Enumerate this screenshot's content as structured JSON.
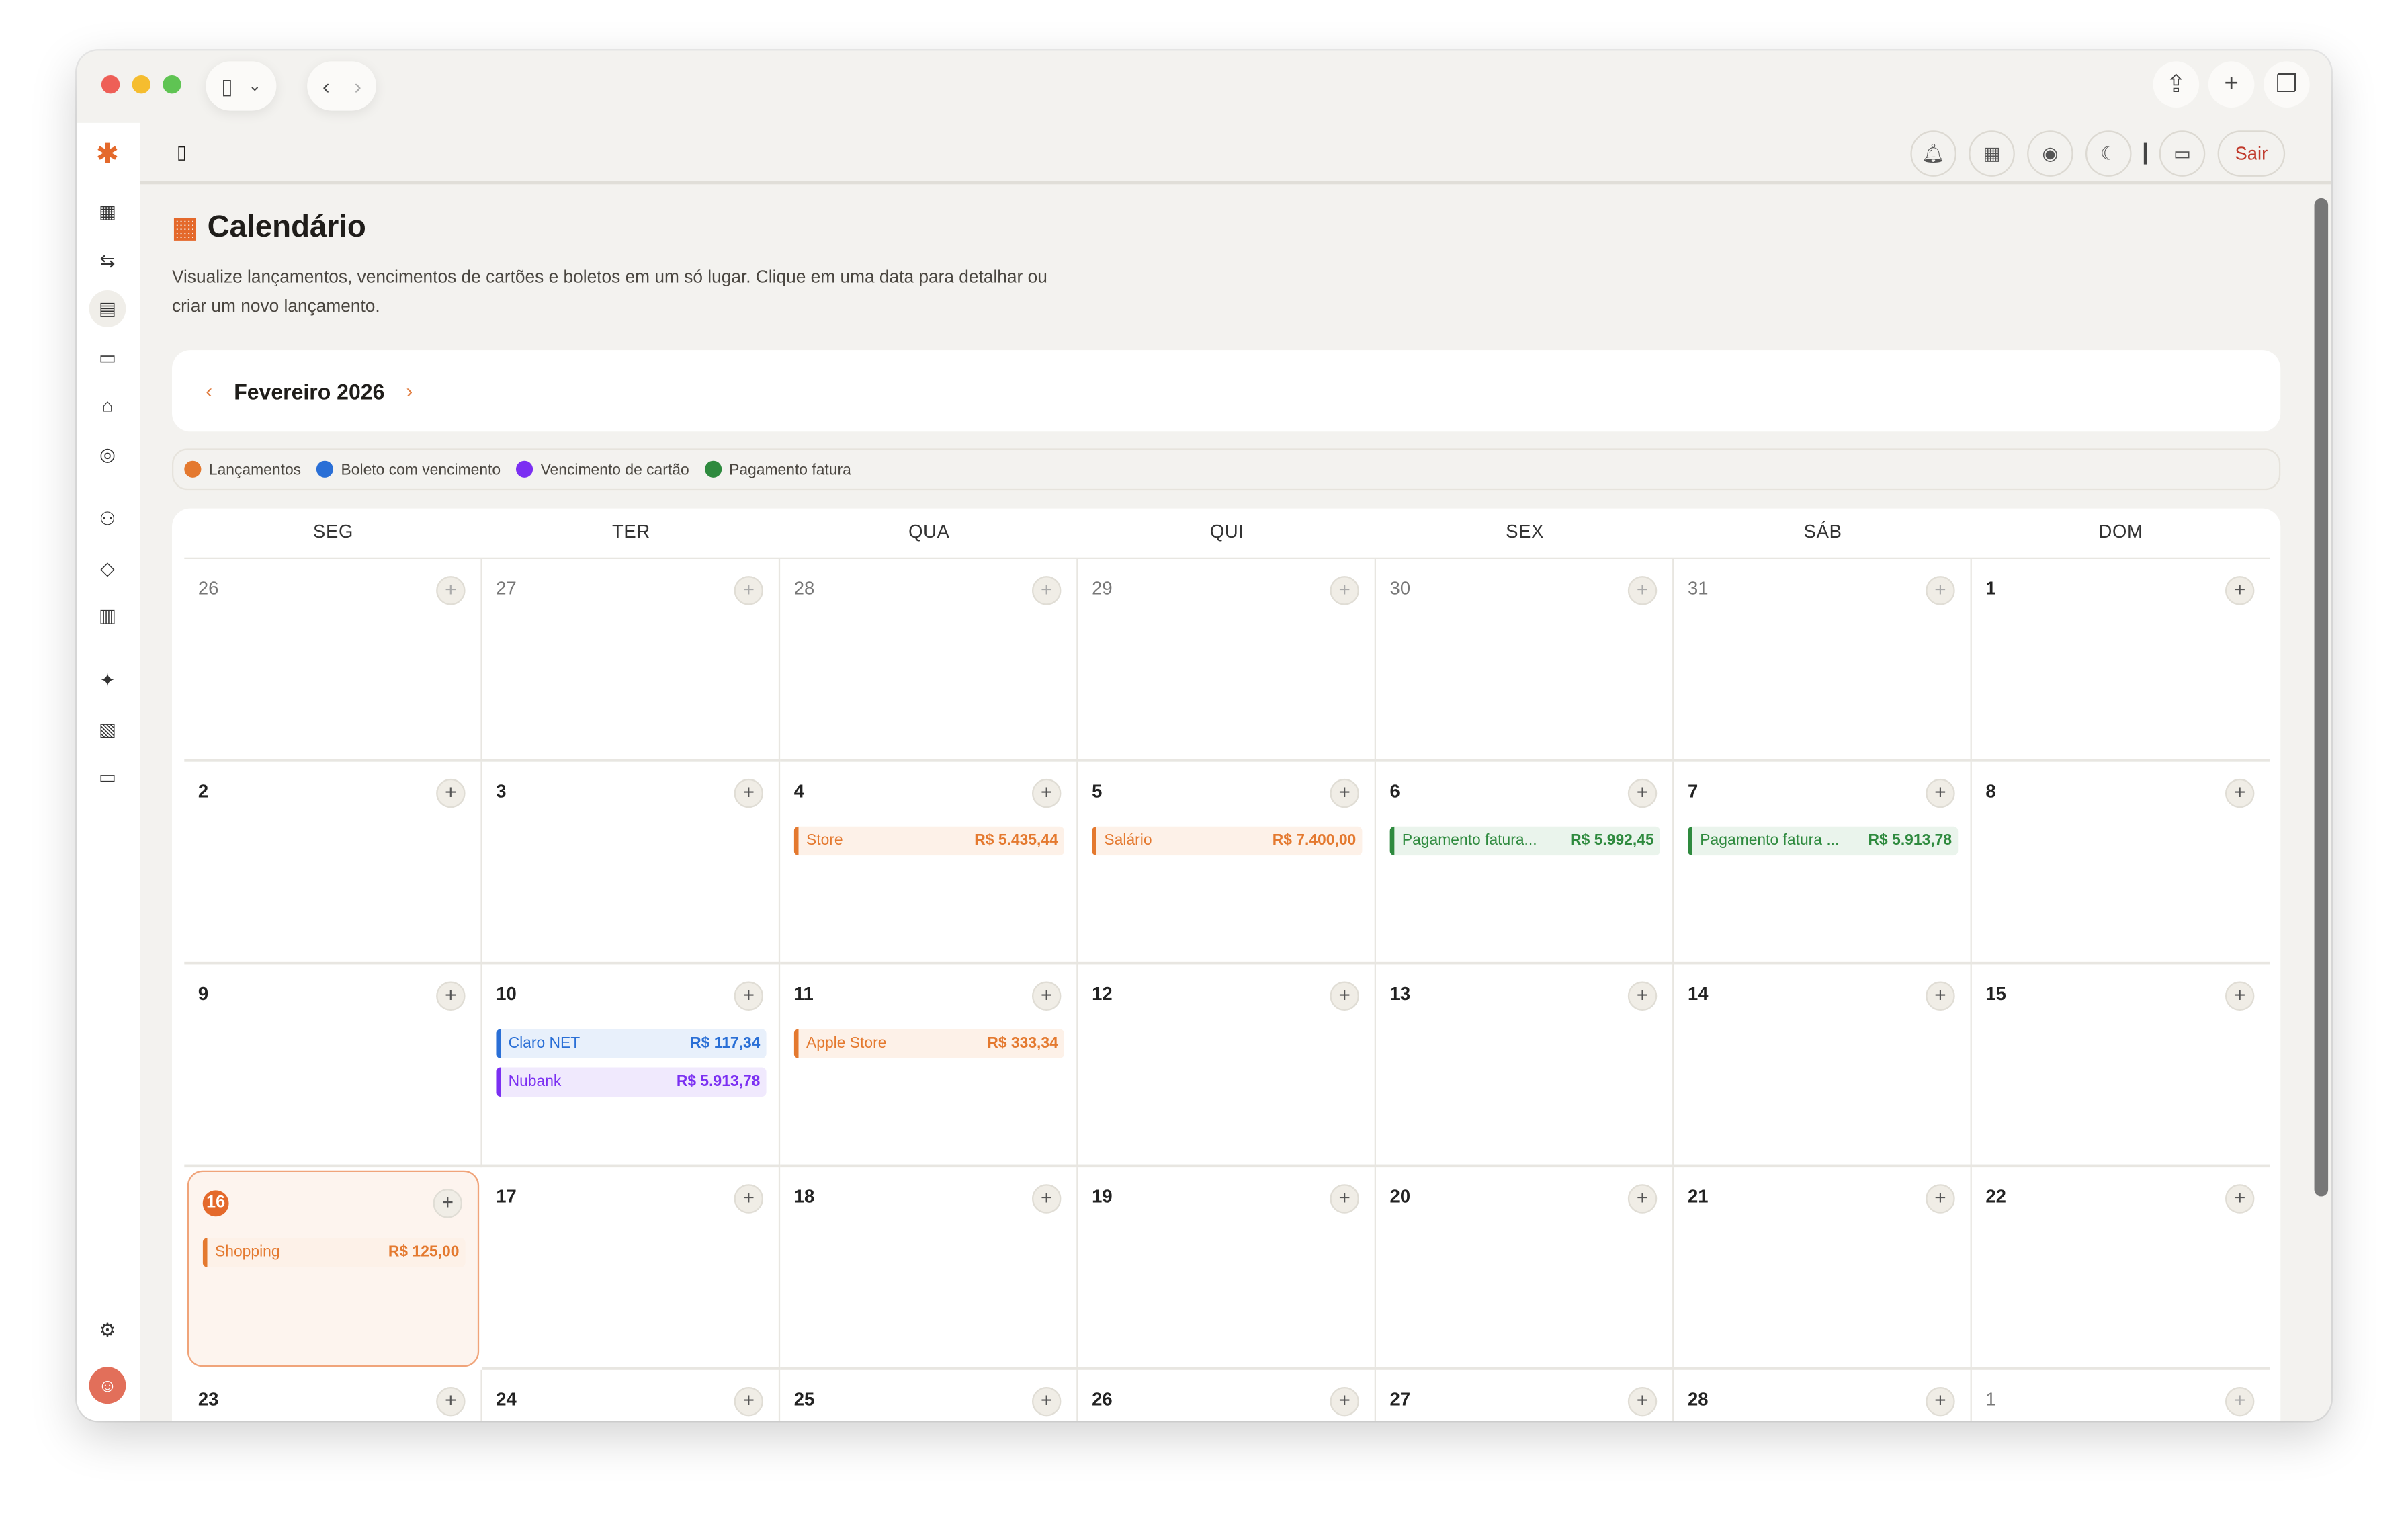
{
  "window": {
    "sidebar_toggle_icon": "sidebar-icon",
    "back_icon": "chevron-left",
    "forward_icon": "chevron-right",
    "share_icon": "share",
    "new_tab_icon": "plus",
    "tabs_icon": "tabs"
  },
  "sidebar": {
    "items": [
      "logo-asterisk",
      "dashboard",
      "transactions",
      "calendar",
      "cards",
      "bank",
      "goals",
      "people",
      "tags",
      "notes",
      "ai-sparkles",
      "reports",
      "card-alt",
      "settings",
      "avatar"
    ],
    "active": "calendar"
  },
  "header": {
    "buttons": [
      "bell",
      "calculator",
      "eye",
      "moon",
      "chat"
    ],
    "logout_label": "Sair"
  },
  "page": {
    "title": "Calendário",
    "description": "Visualize lançamentos, vencimentos de cartões e boletos em um só lugar. Clique em uma data para detalhar ou criar um novo lançamento."
  },
  "month_nav": {
    "label": "Fevereiro 2026",
    "prev": "‹",
    "next": "›"
  },
  "legend": [
    {
      "label": "Lançamentos",
      "color": "#e4792f"
    },
    {
      "label": "Boleto com vencimento",
      "color": "#2a6fd6"
    },
    {
      "label": "Vencimento de cartão",
      "color": "#7b2ff2"
    },
    {
      "label": "Pagamento fatura",
      "color": "#2e8a3e"
    }
  ],
  "weekdays": [
    "SEG",
    "TER",
    "QUA",
    "QUI",
    "SEX",
    "SÁB",
    "DOM"
  ],
  "colors": {
    "lancamento": {
      "fg": "#e4792f",
      "bg": "#fdf1e8"
    },
    "boleto": {
      "fg": "#2a6fd6",
      "bg": "#e8f0fb"
    },
    "cartao": {
      "fg": "#7b2ff2",
      "bg": "#f0e9fd"
    },
    "fatura": {
      "fg": "#2e8a3e",
      "bg": "#eaf4ec"
    }
  },
  "days": [
    {
      "d": "26",
      "out": true
    },
    {
      "d": "27",
      "out": true
    },
    {
      "d": "28",
      "out": true
    },
    {
      "d": "29",
      "out": true
    },
    {
      "d": "30",
      "out": true
    },
    {
      "d": "31",
      "out": true
    },
    {
      "d": "1"
    },
    {
      "d": "2"
    },
    {
      "d": "3"
    },
    {
      "d": "4",
      "events": [
        {
          "t": "Store",
          "v": "R$ 5.435,44",
          "k": "lancamento"
        }
      ]
    },
    {
      "d": "5",
      "events": [
        {
          "t": "Salário",
          "v": "R$ 7.400,00",
          "k": "lancamento"
        }
      ]
    },
    {
      "d": "6",
      "events": [
        {
          "t": "Pagamento fatura...",
          "v": "R$ 5.992,45",
          "k": "fatura"
        }
      ]
    },
    {
      "d": "7",
      "events": [
        {
          "t": "Pagamento fatura ...",
          "v": "R$ 5.913,78",
          "k": "fatura"
        }
      ]
    },
    {
      "d": "8"
    },
    {
      "d": "9"
    },
    {
      "d": "10",
      "events": [
        {
          "t": "Claro NET",
          "v": "R$ 117,34",
          "k": "boleto"
        },
        {
          "t": "Nubank",
          "v": "R$ 5.913,78",
          "k": "cartao"
        }
      ]
    },
    {
      "d": "11",
      "events": [
        {
          "t": "Apple Store",
          "v": "R$ 333,34",
          "k": "lancamento"
        }
      ]
    },
    {
      "d": "12"
    },
    {
      "d": "13"
    },
    {
      "d": "14"
    },
    {
      "d": "15"
    },
    {
      "d": "16",
      "today": true,
      "events": [
        {
          "t": "Shopping",
          "v": "R$ 125,00",
          "k": "lancamento"
        }
      ]
    },
    {
      "d": "17"
    },
    {
      "d": "18"
    },
    {
      "d": "19"
    },
    {
      "d": "20"
    },
    {
      "d": "21"
    },
    {
      "d": "22"
    },
    {
      "d": "23"
    },
    {
      "d": "24"
    },
    {
      "d": "25"
    },
    {
      "d": "26"
    },
    {
      "d": "27"
    },
    {
      "d": "28"
    },
    {
      "d": "1",
      "out": true
    }
  ]
}
